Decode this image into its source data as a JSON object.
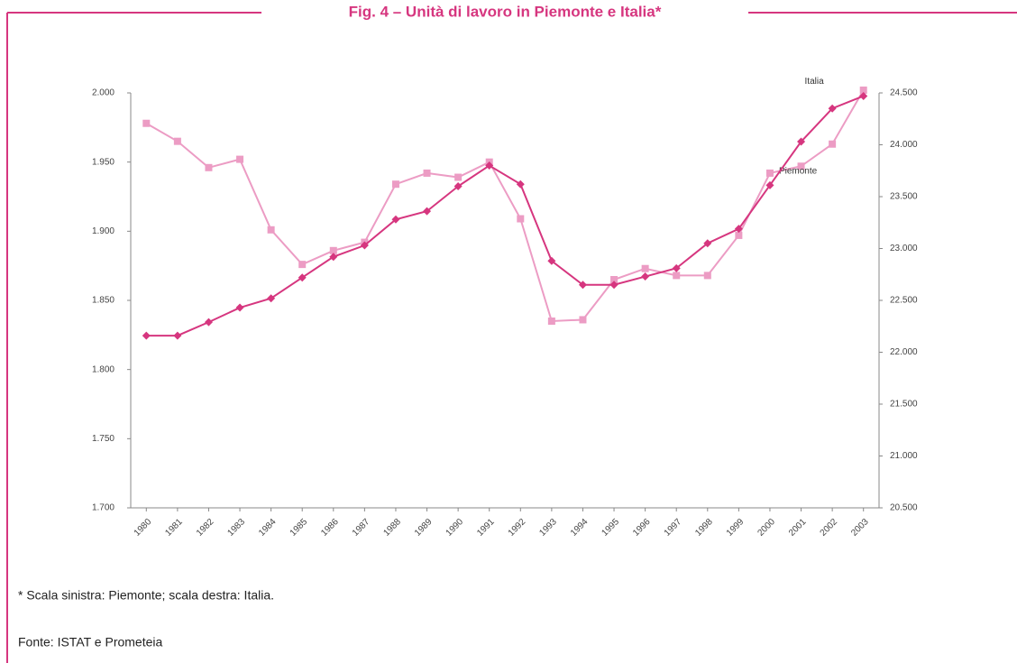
{
  "chart_data": {
    "type": "line",
    "title": "Fig. 4 – Unità di lavoro in Piemonte e Italia*",
    "categories": [
      "1980",
      "1981",
      "1982",
      "1983",
      "1984",
      "1985",
      "1986",
      "1987",
      "1988",
      "1989",
      "1990",
      "1991",
      "1992",
      "1993",
      "1994",
      "1995",
      "1996",
      "1997",
      "1998",
      "1999",
      "2000",
      "2001",
      "2002",
      "2003"
    ],
    "series": [
      {
        "name": "Piemonte",
        "color": "#ec9cc4",
        "marker": "square",
        "axis": "y",
        "values": [
          1978,
          1965,
          1946,
          1952,
          1901,
          1876,
          1886,
          1892,
          1934,
          1942,
          1939,
          1950,
          1909,
          1835,
          1836,
          1865,
          1873,
          1868,
          1868,
          1897,
          1942,
          1947,
          1963,
          2002
        ]
      },
      {
        "name": "Italia",
        "color": "#d6367f",
        "marker": "diamond",
        "axis": "y2",
        "values": [
          22160,
          22160,
          22290,
          22430,
          22520,
          22720,
          22920,
          23030,
          23280,
          23360,
          23600,
          23800,
          23620,
          22880,
          22650,
          22650,
          22730,
          22810,
          23050,
          23190,
          23610,
          24030,
          24350,
          24470
        ]
      }
    ],
    "ylim": [
      1700,
      2000
    ],
    "yticks": [
      {
        "value": 1700,
        "label": "1.700"
      },
      {
        "value": 1750,
        "label": "1.750"
      },
      {
        "value": 1800,
        "label": "1.800"
      },
      {
        "value": 1850,
        "label": "1.850"
      },
      {
        "value": 1900,
        "label": "1.900"
      },
      {
        "value": 1950,
        "label": "1.950"
      },
      {
        "value": 2000,
        "label": "2.000"
      }
    ],
    "y2lim": [
      20500,
      24500
    ],
    "y2ticks": [
      {
        "value": 20500,
        "label": "20.500"
      },
      {
        "value": 21000,
        "label": "21.000"
      },
      {
        "value": 21500,
        "label": "21.500"
      },
      {
        "value": 22000,
        "label": "22.000"
      },
      {
        "value": 22500,
        "label": "22.500"
      },
      {
        "value": 23000,
        "label": "23.000"
      },
      {
        "value": 23500,
        "label": "23.500"
      },
      {
        "value": 24000,
        "label": "24.000"
      },
      {
        "value": 24500,
        "label": "24.500"
      }
    ],
    "grid": false,
    "note": "* Scala sinistra: Piemonte; scala destra: Italia.",
    "source": "Fonte: ISTAT e Prometeia"
  }
}
